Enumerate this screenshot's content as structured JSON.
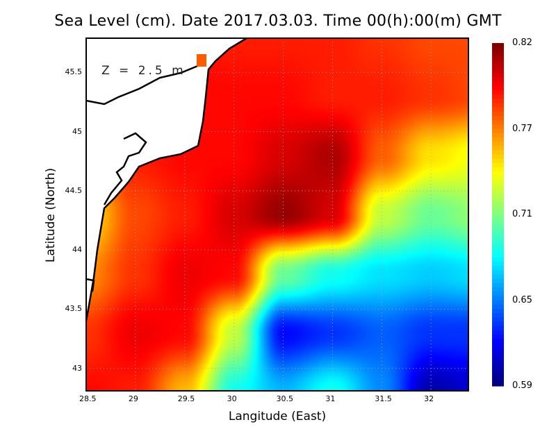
{
  "chart_data": {
    "type": "heatmap",
    "title": "Sea Level (cm). Date 2017.03.03. Time 00(h):00(m) GMT",
    "xlabel": "Langitude (East)",
    "ylabel": "Latitude (North)",
    "annotation": "Z = 2.5 m",
    "xlim": [
      28.5,
      32.38
    ],
    "ylim": [
      42.81,
      45.79
    ],
    "x_ticks": [
      "28.5",
      "29",
      "29.5",
      "30",
      "30.5",
      "31",
      "31.5",
      "32"
    ],
    "y_ticks": [
      "43",
      "43.5",
      "44",
      "44.5",
      "45",
      "45.5"
    ],
    "grid": true,
    "colorbar": {
      "min": 0.59,
      "max": 0.82,
      "labels": [
        "0.82",
        "0.77",
        "0.71",
        "0.65",
        "0.59"
      ],
      "colormap": "jet"
    },
    "grid_lon": [
      28.5,
      29,
      29.5,
      30,
      30.5,
      31,
      31.5,
      32,
      32.5
    ],
    "grid_lat": [
      45.8,
      45.3,
      44.8,
      44.3,
      43.8,
      43.3,
      42.8
    ],
    "values": [
      [
        0.79,
        0.79,
        0.79,
        0.785,
        0.785,
        0.785,
        0.78,
        0.775,
        0.775
      ],
      [
        0.79,
        0.79,
        0.79,
        0.79,
        0.79,
        0.785,
        0.785,
        0.78,
        0.775
      ],
      [
        0.78,
        0.785,
        0.79,
        0.79,
        0.8,
        0.81,
        0.77,
        0.74,
        0.73
      ],
      [
        0.74,
        0.775,
        0.785,
        0.8,
        0.815,
        0.8,
        0.72,
        0.7,
        0.71
      ],
      [
        0.76,
        0.78,
        0.795,
        0.79,
        0.7,
        0.68,
        0.67,
        0.665,
        0.67
      ],
      [
        0.78,
        0.795,
        0.79,
        0.72,
        0.62,
        0.63,
        0.64,
        0.63,
        0.63
      ],
      [
        0.79,
        0.785,
        0.75,
        0.68,
        0.66,
        0.68,
        0.65,
        0.6,
        0.61
      ]
    ]
  }
}
